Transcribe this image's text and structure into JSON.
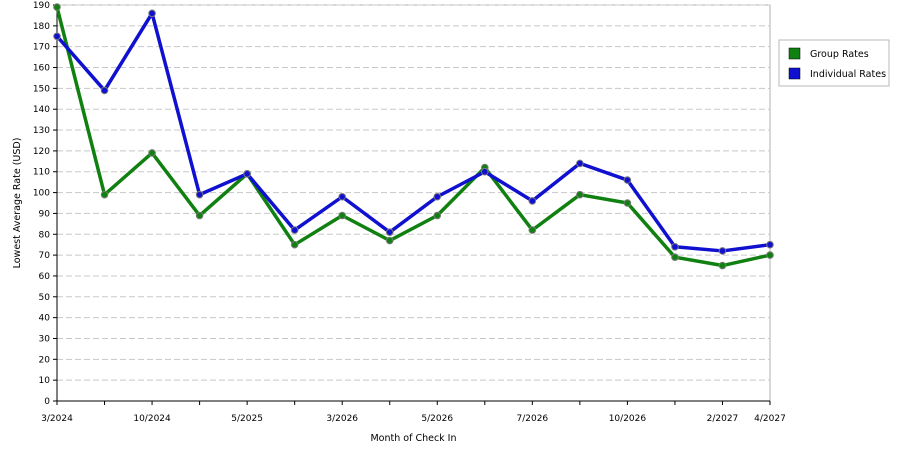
{
  "chart_data": {
    "type": "line",
    "xlabel": "Month of Check In",
    "ylabel": "Lowest Average Rate (USD)",
    "ylim": [
      0,
      190
    ],
    "y_ticks": [
      0,
      10,
      20,
      30,
      40,
      50,
      60,
      70,
      80,
      90,
      100,
      110,
      120,
      130,
      140,
      150,
      160,
      170,
      180,
      190
    ],
    "x_tick_labels": [
      {
        "index": 0,
        "label": "3/2024"
      },
      {
        "index": 2,
        "label": "10/2024"
      },
      {
        "index": 4,
        "label": "5/2025"
      },
      {
        "index": 6,
        "label": "3/2026"
      },
      {
        "index": 8,
        "label": "5/2026"
      },
      {
        "index": 10,
        "label": "7/2026"
      },
      {
        "index": 12,
        "label": "10/2026"
      },
      {
        "index": 14,
        "label": "2/2027"
      },
      {
        "index": 15,
        "label": "4/2027"
      }
    ],
    "point_count": 16,
    "grid": true,
    "legend_position": "right",
    "series": [
      {
        "name": "Group Rates",
        "color": "#108010",
        "values": [
          189,
          99,
          119,
          89,
          109,
          75,
          89,
          77,
          89,
          112,
          82,
          99,
          95,
          69,
          65,
          70
        ]
      },
      {
        "name": "Individual Rates",
        "color": "#1010d0",
        "values": [
          175,
          149,
          186,
          99,
          109,
          82,
          98,
          81,
          98,
          110,
          96,
          114,
          106,
          74,
          72,
          75
        ]
      }
    ]
  }
}
